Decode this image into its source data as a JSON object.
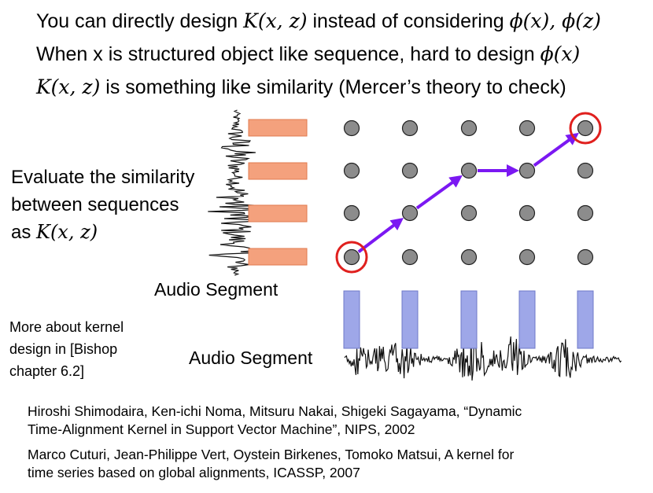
{
  "lines": {
    "l1_text": "You can directly design ",
    "l1_math1": "K(x, z)",
    "l1_mid": " instead of considering ",
    "l1_math2": "ϕ(x), ϕ(z)",
    "l2_text": "When x is structured object like sequence,  hard to design ",
    "l2_math": "ϕ(x)",
    "l3_math": "K(x, z)",
    "l3_text": " is something like similarity  (Mercer’s theory to check)"
  },
  "similarity": {
    "line1": "Evaluate the similarity",
    "line2": "between sequences",
    "line3_prefix": "as ",
    "line3_math": "K(x, z)"
  },
  "labels": {
    "audio_segment_left": "Audio Segment",
    "audio_segment_bottom": "Audio Segment"
  },
  "bishop": {
    "line1": "More about kernel",
    "line2": "design in [Bishop",
    "line3": "chapter 6.2]"
  },
  "references": {
    "ref1_line1": "Hiroshi Shimodaira, Ken-ichi Noma, Mitsuru Nakai, Shigeki Sagayama, “Dynamic",
    "ref1_line2": "Time-Alignment Kernel in Support Vector Machine”, NIPS, 2002",
    "ref2_line1": "Marco Cuturi, Jean-Philippe Vert, Oystein Birkenes, Tomoko Matsui, A kernel for",
    "ref2_line2": "time series based on global alignments, ICASSP, 2007"
  },
  "grid": {
    "rows": 4,
    "cols": 5,
    "path": [
      [
        0,
        0
      ],
      [
        1,
        1
      ],
      [
        2,
        2
      ],
      [
        3,
        2
      ],
      [
        4,
        3
      ]
    ],
    "circled": [
      [
        0,
        0
      ],
      [
        4,
        3
      ]
    ]
  },
  "colors": {
    "node": "#8c8c8c",
    "arrow": "#7b18f2",
    "circle": "#e0201e",
    "left_segment": "#f4a17d",
    "bottom_segment": "#9ea7e8"
  }
}
